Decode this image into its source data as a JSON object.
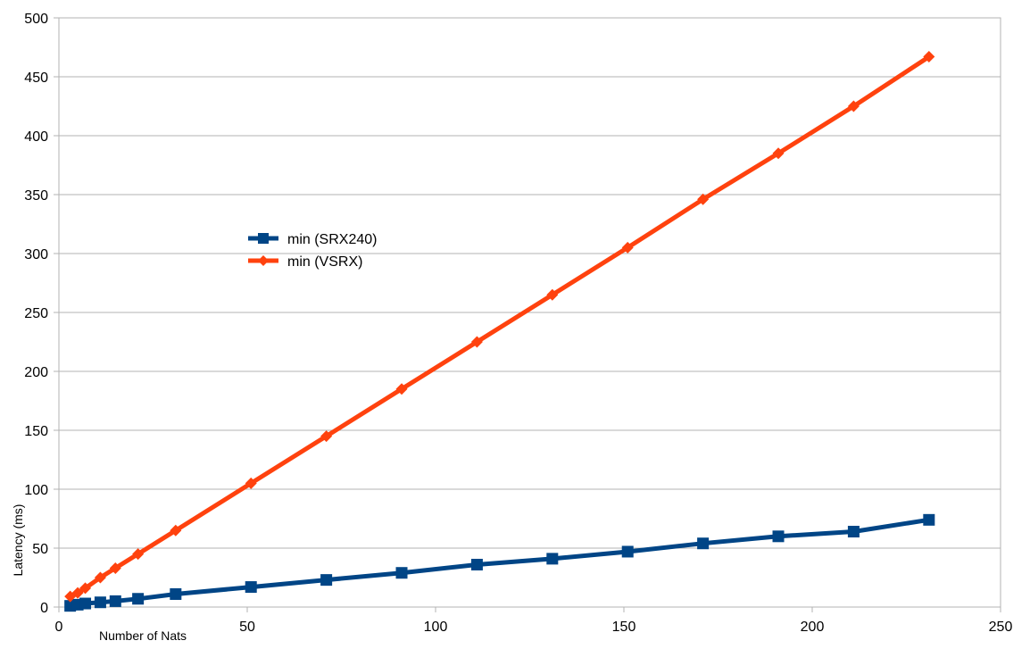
{
  "chart_data": {
    "type": "line",
    "title": "",
    "xlabel": "Number of Nats",
    "ylabel": "Latency (ms)",
    "xlim": [
      0,
      250
    ],
    "ylim": [
      0,
      500
    ],
    "x_ticks": [
      "0",
      "50",
      "100",
      "150",
      "200",
      "250"
    ],
    "y_ticks": [
      "0",
      "50",
      "100",
      "150",
      "200",
      "250",
      "300",
      "350",
      "400",
      "450",
      "500"
    ],
    "grid": "horizontal",
    "legend_position": "upper-left-inside",
    "series": [
      {
        "name": "min (SRX240)",
        "color": "#004586",
        "marker": "square",
        "x": [
          3,
          5,
          7,
          11,
          15,
          21,
          31,
          51,
          71,
          91,
          111,
          131,
          151,
          171,
          191,
          211,
          231
        ],
        "y": [
          1,
          2,
          3,
          4,
          5,
          7,
          11,
          17,
          23,
          29,
          36,
          41,
          47,
          54,
          60,
          64,
          74
        ]
      },
      {
        "name": "min (VSRX)",
        "color": "#ff420e",
        "marker": "diamond",
        "x": [
          3,
          5,
          7,
          11,
          15,
          21,
          31,
          51,
          71,
          91,
          111,
          131,
          151,
          171,
          191,
          211,
          231
        ],
        "y": [
          9,
          12,
          16,
          25,
          33,
          45,
          65,
          105,
          145,
          185,
          225,
          265,
          305,
          346,
          385,
          425,
          467
        ]
      }
    ]
  }
}
